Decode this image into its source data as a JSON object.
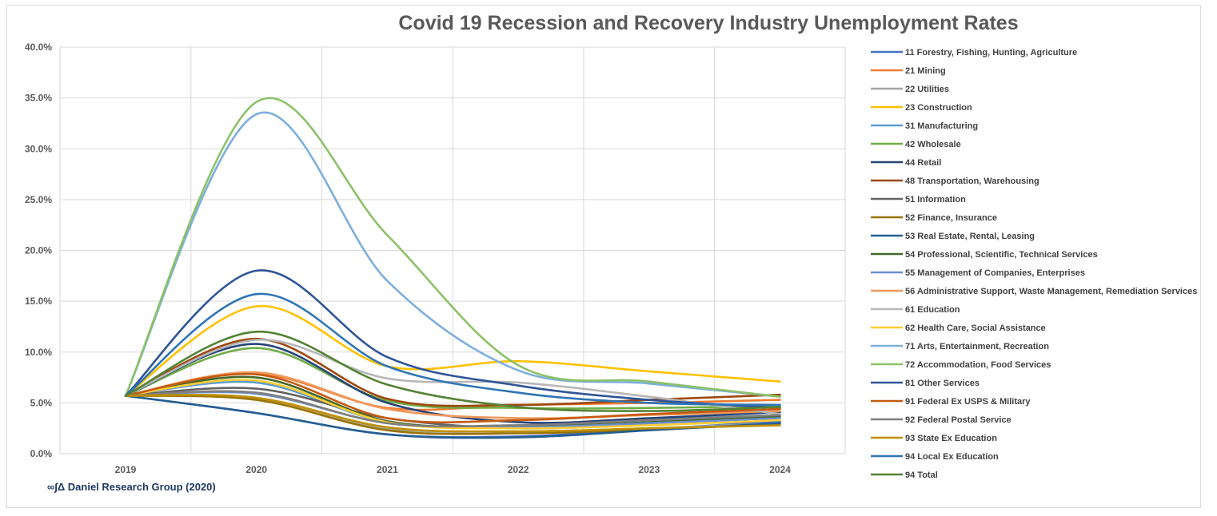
{
  "chart_data": {
    "type": "line",
    "title": "Covid 19 Recession and Recovery Industry Unemployment Rates",
    "credit": "∞∫Δ Daniel Research Group (2020)",
    "xlabel": "",
    "ylabel": "",
    "categories": [
      "2019",
      "2020",
      "2021",
      "2022",
      "2023",
      "2024"
    ],
    "ylim": [
      0,
      40
    ],
    "yticks": [
      {
        "value": 0,
        "label": "0.0%"
      },
      {
        "value": 5,
        "label": "5.0%"
      },
      {
        "value": 10,
        "label": "10.0%"
      },
      {
        "value": 15,
        "label": "15.0%"
      },
      {
        "value": 20,
        "label": "20.0%"
      },
      {
        "value": 25,
        "label": "25.0%"
      },
      {
        "value": 30,
        "label": "30.0%"
      },
      {
        "value": 35,
        "label": "35.0%"
      },
      {
        "value": 40,
        "label": "40.0%"
      }
    ],
    "legend_position": "right",
    "series": [
      {
        "name": "11 Forestry, Fishing, Hunting, Agriculture",
        "color": "#4472c4",
        "values": [
          5.7,
          4.0,
          1.9,
          1.7,
          2.4,
          3.2
        ]
      },
      {
        "name": "21 Mining",
        "color": "#ed7d31",
        "values": [
          5.7,
          7.9,
          4.5,
          4.8,
          5.0,
          5.3
        ]
      },
      {
        "name": "22 Utilities",
        "color": "#a5a5a5",
        "values": [
          5.7,
          5.5,
          2.5,
          2.2,
          2.5,
          3.0
        ]
      },
      {
        "name": "23 Construction",
        "color": "#ffc000",
        "values": [
          5.7,
          14.5,
          8.6,
          9.1,
          8.1,
          7.1
        ]
      },
      {
        "name": "31 Manufacturing",
        "color": "#5b9bd5",
        "values": [
          5.7,
          7.0,
          3.1,
          2.8,
          3.4,
          3.8
        ]
      },
      {
        "name": "42 Wholesale",
        "color": "#70ad47",
        "values": [
          5.7,
          10.4,
          5.2,
          4.5,
          4.5,
          4.7
        ]
      },
      {
        "name": "44 Retail",
        "color": "#264478",
        "values": [
          5.7,
          10.8,
          5.0,
          3.1,
          3.5,
          4.1
        ]
      },
      {
        "name": "48 Transportation, Warehousing",
        "color": "#9e480e",
        "values": [
          5.7,
          11.3,
          5.4,
          4.8,
          5.3,
          5.8
        ]
      },
      {
        "name": "51 Information",
        "color": "#636363",
        "values": [
          5.7,
          6.4,
          3.5,
          2.5,
          3.0,
          3.6
        ]
      },
      {
        "name": "52 Finance, Insurance",
        "color": "#997300",
        "values": [
          5.7,
          5.3,
          2.3,
          2.0,
          2.4,
          2.9
        ]
      },
      {
        "name": "53 Real Estate, Rental, Leasing",
        "color": "#255e91",
        "values": [
          5.7,
          4.0,
          1.9,
          1.6,
          2.3,
          3.0
        ]
      },
      {
        "name": "54 Professional, Scientific, Technical Services",
        "color": "#43682b",
        "values": [
          5.7,
          7.5,
          3.2,
          2.7,
          3.1,
          3.7
        ]
      },
      {
        "name": "55 Management of Companies, Enterprises",
        "color": "#698ed0",
        "values": [
          5.7,
          5.9,
          3.0,
          2.6,
          3.0,
          3.5
        ]
      },
      {
        "name": "56 Administrative Support, Waste Management, Remediation Services",
        "color": "#f1975a",
        "values": [
          5.7,
          8.0,
          4.4,
          3.5,
          3.8,
          4.2
        ]
      },
      {
        "name": "61 Education",
        "color": "#b7b7b7",
        "values": [
          5.7,
          11.2,
          7.4,
          7.0,
          5.6,
          3.9
        ]
      },
      {
        "name": "62 Health Care, Social Assistance",
        "color": "#ffcd33",
        "values": [
          5.7,
          7.2,
          3.1,
          2.5,
          2.8,
          3.3
        ]
      },
      {
        "name": "71 Arts, Entertainment, Recreation",
        "color": "#7cafdd",
        "values": [
          5.7,
          33.4,
          17.0,
          8.2,
          6.9,
          5.6
        ]
      },
      {
        "name": "72 Accommodation, Food Services",
        "color": "#8cc168",
        "values": [
          5.7,
          34.6,
          21.5,
          8.7,
          7.1,
          5.6
        ]
      },
      {
        "name": "81 Other Services",
        "color": "#2f5597",
        "values": [
          5.7,
          18.0,
          9.5,
          6.7,
          5.3,
          4.5
        ]
      },
      {
        "name": "91 Federal Ex USPS & Military",
        "color": "#c55a11",
        "values": [
          5.7,
          7.8,
          3.5,
          3.3,
          3.9,
          4.4
        ]
      },
      {
        "name": "92 Federal Postal Service",
        "color": "#7f7f7f",
        "values": [
          5.7,
          6.0,
          3.0,
          2.8,
          3.3,
          3.8
        ]
      },
      {
        "name": "93 State Ex Education",
        "color": "#bf9000",
        "values": [
          5.7,
          5.5,
          2.6,
          2.2,
          2.5,
          2.8
        ]
      },
      {
        "name": "94 Local Ex Education",
        "color": "#2e75b6",
        "values": [
          5.7,
          15.7,
          8.6,
          6.0,
          5.0,
          4.8
        ]
      },
      {
        "name": "94 Total",
        "color": "#548235",
        "values": [
          5.7,
          12.0,
          6.8,
          4.6,
          4.2,
          4.6
        ]
      }
    ]
  }
}
